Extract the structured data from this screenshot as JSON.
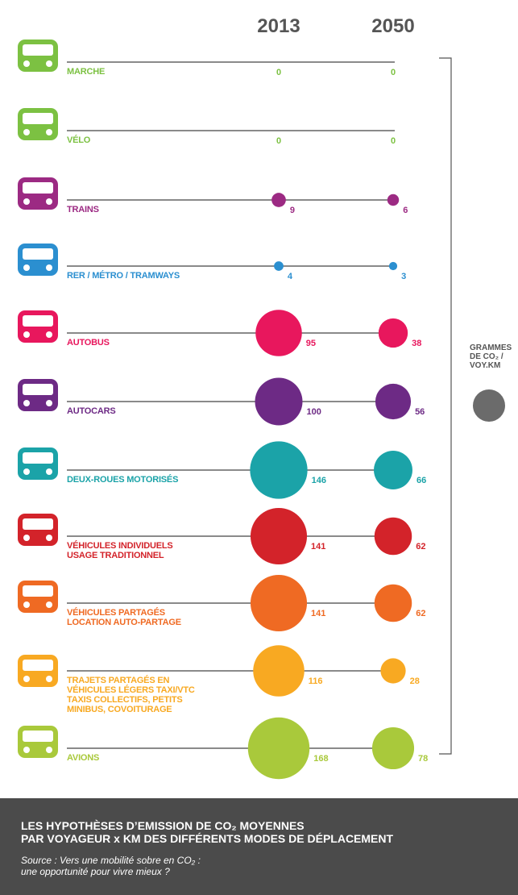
{
  "chart_data": {
    "type": "bubble",
    "categories": [
      "MARCHE",
      "VÉLO",
      "TRAINS",
      "RER / MÉTRO / TRAMWAYS",
      "AUTOBUS",
      "AUTOCARS",
      "DEUX-ROUES MOTORISÉS",
      "VÉHICULES INDIVIDUELS\nUSAGE TRADITIONNEL",
      "VÉHICULES PARTAGÉS\nLOCATION AUTO-PARTAGE",
      "TRAJETS PARTAGÉS EN\nVÉHICULES LÉGERS TAXI/VTC\nTAXIS COLLECTIFS, PETITS\nMINIBUS, COVOITURAGE",
      "AVIONS"
    ],
    "colors": [
      "#7cc142",
      "#7cc142",
      "#9c2a83",
      "#2b8fd0",
      "#e8175d",
      "#6d2a85",
      "#1ba3a8",
      "#d3232a",
      "#ef6a23",
      "#f8a922",
      "#a9c93b"
    ],
    "series": [
      {
        "name": "2013",
        "values": [
          0,
          0,
          9,
          4,
          95,
          100,
          146,
          141,
          141,
          116,
          168
        ]
      },
      {
        "name": "2050",
        "values": [
          0,
          0,
          6,
          3,
          38,
          56,
          66,
          62,
          62,
          28,
          78
        ]
      }
    ],
    "legend_label": "GRAMMES\nDE CO₂ /\nVOY.KM"
  },
  "footer": {
    "title": "LES HYPOTHÈSES D’EMISSION DE CO₂ MOYENNES\nPAR VOYAGEUR x KM DES DIFFÉRENTS MODES DE DÉPLACEMENT",
    "source": "Source : Vers une mobilité sobre en CO₂ :\nune opportunité pour vivre mieux ?"
  }
}
